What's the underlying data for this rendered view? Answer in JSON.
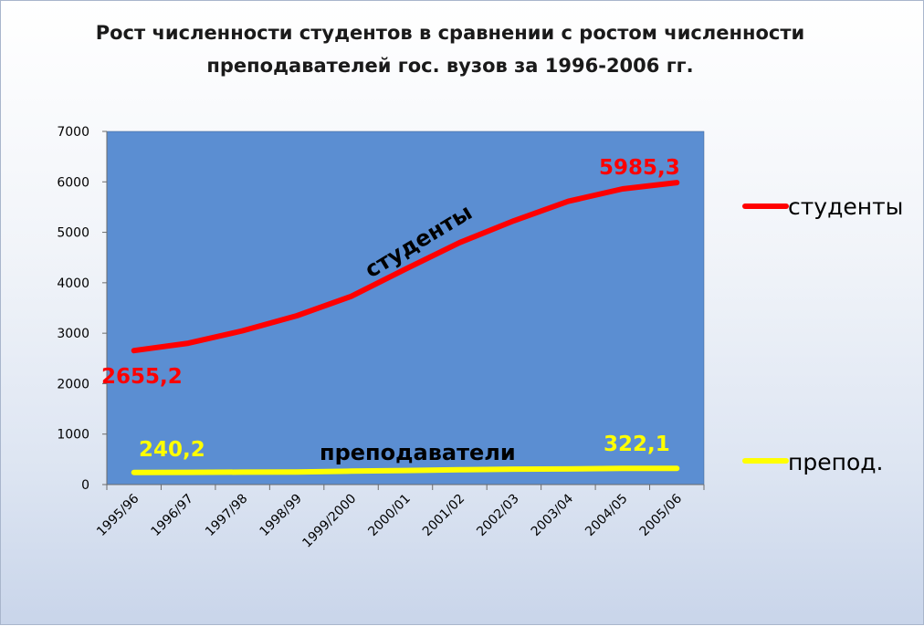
{
  "chart_data": {
    "type": "line",
    "title": [
      "Рост численности студентов в сравнении с ростом численности",
      "преподавателей гос. вузов за 1996-2006 гг."
    ],
    "xlabel": "",
    "ylabel": "",
    "ylim": [
      0,
      7000
    ],
    "yticks": [
      0,
      1000,
      2000,
      3000,
      4000,
      5000,
      6000,
      7000
    ],
    "categories": [
      "1995/96",
      "1996/97",
      "1997/98",
      "1998/99",
      "1999/2000",
      "2000/01",
      "2001/02",
      "2002/03",
      "2003/04",
      "2004/05",
      "2005/06"
    ],
    "grid": false,
    "plot_background": "#5b8ed2",
    "legend_position": "right",
    "series": [
      {
        "name": "студенты",
        "color": "#ff0000",
        "values": [
          2655.2,
          2802,
          3047,
          3347,
          3729,
          4271,
          4797,
          5229,
          5614,
          5860,
          5985.3
        ]
      },
      {
        "name": "препод.",
        "color": "#ffff00",
        "values": [
          240.2,
          243,
          246,
          250,
          265,
          279,
          293,
          305,
          310,
          320,
          322.1
        ]
      }
    ],
    "annotations": [
      {
        "text": "2655,2",
        "color": "#ff0000"
      },
      {
        "text": "5985,3",
        "color": "#ff0000"
      },
      {
        "text": "240,2",
        "color": "#ffff00"
      },
      {
        "text": "322,1",
        "color": "#ffff00"
      },
      {
        "text": "студенты",
        "color": "#000000"
      },
      {
        "text": "преподаватели",
        "color": "#000000"
      }
    ]
  }
}
